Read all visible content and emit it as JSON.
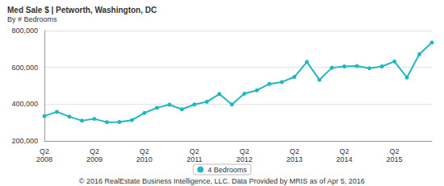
{
  "chart_data": {
    "type": "line",
    "title": "Med Sale $ | Petworth, Washington, DC",
    "subtitle": "By # Bedrooms",
    "source": "© 2016 RealEstate Business Intelligence, LLC. Data Provided by MRIS as of Apr 5, 2016",
    "categories": [
      "Q2 2008",
      null,
      null,
      null,
      "Q2 2009",
      null,
      null,
      null,
      "Q2 2010",
      null,
      null,
      null,
      "Q2 2011",
      null,
      null,
      null,
      "Q2 2012",
      null,
      null,
      null,
      "Q2 2013",
      null,
      null,
      null,
      "Q2 2014",
      null,
      null,
      null,
      "Q2 2015",
      null,
      null,
      null
    ],
    "series": [
      {
        "name": "4 Bedrooms",
        "color": "#21b6c3",
        "marker": "circle",
        "values": [
          335000,
          358000,
          332000,
          310000,
          320000,
          302000,
          303000,
          313000,
          352000,
          380000,
          397000,
          372000,
          398000,
          413000,
          455000,
          398000,
          457000,
          475000,
          510000,
          520000,
          548000,
          630000,
          532000,
          598000,
          605000,
          607000,
          595000,
          605000,
          632000,
          545000,
          672000,
          735000
        ]
      }
    ],
    "ylim": [
      200000,
      800000
    ],
    "yticks": [
      {
        "value": 200000,
        "label": "200,000"
      },
      {
        "value": 400000,
        "label": "400,000"
      },
      {
        "value": 600000,
        "label": "600,000"
      },
      {
        "value": 800000,
        "label": "800,000"
      }
    ],
    "grid": true,
    "legend": "bottom"
  }
}
